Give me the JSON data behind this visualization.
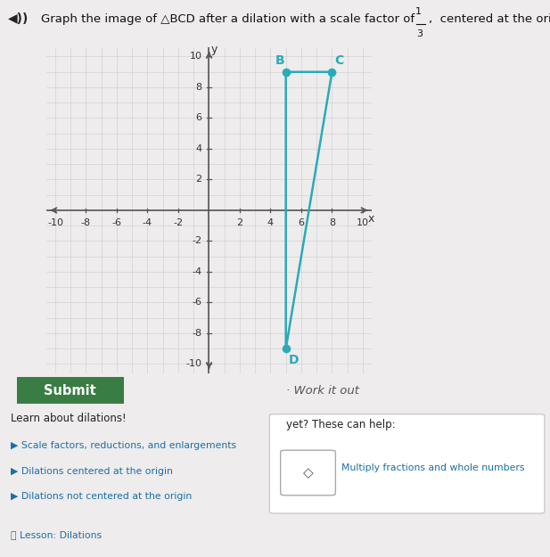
{
  "orig_B": [
    5,
    9
  ],
  "orig_C": [
    8,
    9
  ],
  "orig_D": [
    5,
    -9
  ],
  "triangle_color": "#29ABB8",
  "triangle_linewidth": 1.8,
  "dot_size": 35,
  "axis_color": "#555555",
  "grid_color": "#cccccc",
  "grid_minor_color": "#e0e0e0",
  "label_color": "#29ABB8",
  "bg_color": "#eeecec",
  "axis_range": [
    -10,
    10
  ],
  "tick_step": 2,
  "label_fontsize": 10,
  "tick_fontsize": 8,
  "submit_btn_color": "#3a7d44",
  "links": [
    "Scale factors, reductions, and enlargements",
    "Dilations centered at the origin",
    "Dilations not centered at the origin",
    "Lesson: Dilations"
  ]
}
